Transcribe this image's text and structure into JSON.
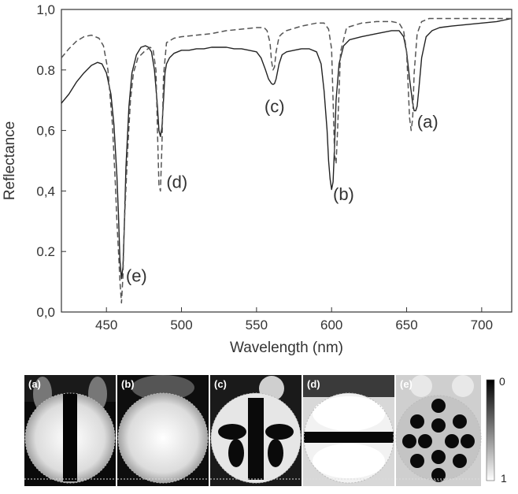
{
  "chart_data": {
    "type": "line",
    "xlabel": "Wavelength (nm)",
    "ylabel": "Reflectance",
    "xlim": [
      420,
      720
    ],
    "ylim": [
      0.0,
      1.0
    ],
    "x_ticks": [
      450,
      500,
      550,
      600,
      650,
      700
    ],
    "y_ticks": [
      "0,0",
      "0.2",
      "0,4",
      "0,6",
      "0.8",
      "1,0"
    ],
    "grid": false,
    "series": [
      {
        "style": "solid",
        "color": "#222222",
        "x": [
          420,
          425,
          430,
          435,
          440,
          444,
          447,
          450,
          453,
          455,
          457,
          458,
          459,
          460,
          461,
          462,
          463,
          465,
          467,
          470,
          473,
          476,
          478,
          480,
          482,
          484,
          485,
          486,
          487,
          488,
          489,
          490,
          492,
          495,
          500,
          505,
          510,
          515,
          520,
          525,
          530,
          535,
          540,
          545,
          550,
          553,
          556,
          558,
          560,
          561,
          562,
          563,
          565,
          567,
          570,
          575,
          580,
          585,
          590,
          593,
          595,
          597,
          598,
          599,
          600,
          601,
          602,
          603,
          605,
          608,
          612,
          620,
          630,
          640,
          645,
          648,
          650,
          652,
          654,
          655,
          656,
          657,
          658,
          660,
          663,
          667,
          672,
          680,
          690,
          700,
          710,
          720
        ],
        "y": [
          0.69,
          0.72,
          0.76,
          0.79,
          0.815,
          0.825,
          0.82,
          0.79,
          0.72,
          0.62,
          0.45,
          0.32,
          0.17,
          0.11,
          0.15,
          0.3,
          0.48,
          0.68,
          0.79,
          0.85,
          0.875,
          0.88,
          0.875,
          0.86,
          0.8,
          0.68,
          0.6,
          0.58,
          0.61,
          0.7,
          0.79,
          0.82,
          0.84,
          0.855,
          0.865,
          0.865,
          0.87,
          0.87,
          0.875,
          0.875,
          0.875,
          0.87,
          0.87,
          0.865,
          0.86,
          0.84,
          0.8,
          0.77,
          0.755,
          0.752,
          0.755,
          0.77,
          0.82,
          0.85,
          0.86,
          0.865,
          0.87,
          0.87,
          0.86,
          0.82,
          0.73,
          0.6,
          0.5,
          0.44,
          0.405,
          0.43,
          0.55,
          0.7,
          0.82,
          0.88,
          0.9,
          0.91,
          0.92,
          0.93,
          0.93,
          0.91,
          0.86,
          0.77,
          0.69,
          0.665,
          0.665,
          0.68,
          0.73,
          0.84,
          0.91,
          0.93,
          0.94,
          0.945,
          0.95,
          0.955,
          0.96,
          0.97
        ]
      },
      {
        "style": "dashed",
        "color": "#555555",
        "x": [
          420,
          425,
          430,
          435,
          440,
          445,
          448,
          451,
          454,
          456,
          457,
          458,
          459,
          460,
          461,
          462,
          464,
          466,
          468,
          471,
          475,
          479,
          481,
          483,
          484,
          485,
          486,
          487,
          488,
          490,
          495,
          500,
          510,
          520,
          530,
          540,
          550,
          555,
          557,
          559,
          560,
          561,
          562,
          563,
          565,
          567,
          570,
          580,
          590,
          595,
          598,
          600,
          601,
          602,
          603,
          604,
          606,
          610,
          620,
          630,
          640,
          645,
          648,
          650,
          651,
          652,
          653,
          654,
          655,
          657,
          660,
          665,
          670,
          680,
          690,
          700,
          710,
          720
        ],
        "y": [
          0.84,
          0.87,
          0.895,
          0.91,
          0.915,
          0.905,
          0.88,
          0.8,
          0.62,
          0.42,
          0.3,
          0.2,
          0.1,
          0.03,
          0.12,
          0.3,
          0.52,
          0.7,
          0.79,
          0.84,
          0.86,
          0.875,
          0.87,
          0.8,
          0.6,
          0.42,
          0.4,
          0.55,
          0.78,
          0.89,
          0.905,
          0.91,
          0.915,
          0.92,
          0.93,
          0.935,
          0.94,
          0.94,
          0.93,
          0.89,
          0.83,
          0.8,
          0.81,
          0.86,
          0.91,
          0.92,
          0.93,
          0.945,
          0.955,
          0.955,
          0.935,
          0.87,
          0.7,
          0.52,
          0.49,
          0.6,
          0.86,
          0.94,
          0.955,
          0.96,
          0.96,
          0.955,
          0.93,
          0.86,
          0.75,
          0.64,
          0.6,
          0.64,
          0.79,
          0.92,
          0.96,
          0.97,
          0.97,
          0.97,
          0.97,
          0.97,
          0.97,
          0.97
        ]
      }
    ],
    "annotations": [
      {
        "text": "(a)",
        "x": 664,
        "y": 0.61
      },
      {
        "text": "(b)",
        "x": 608,
        "y": 0.37
      },
      {
        "text": "(c)",
        "x": 562,
        "y": 0.66
      },
      {
        "text": "(d)",
        "x": 497,
        "y": 0.41
      },
      {
        "text": "(e)",
        "x": 470,
        "y": 0.1
      }
    ]
  },
  "panels": [
    {
      "label": "(a)",
      "pattern": "mode-a"
    },
    {
      "label": "(b)",
      "pattern": "mode-b"
    },
    {
      "label": "(c)",
      "pattern": "mode-c"
    },
    {
      "label": "(d)",
      "pattern": "mode-d"
    },
    {
      "label": "(e)",
      "pattern": "mode-e"
    }
  ],
  "colorbar": {
    "top_label": "0",
    "bottom_label": "1"
  }
}
